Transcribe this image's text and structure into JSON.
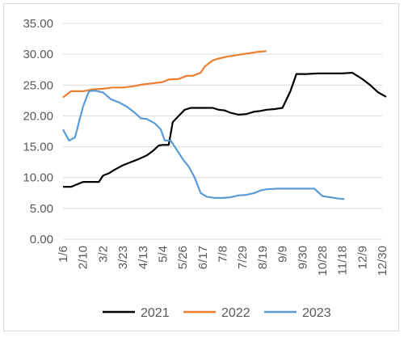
{
  "chart_data": {
    "type": "line",
    "title": "",
    "xlabel": "",
    "ylabel": "",
    "ylim": [
      0,
      35
    ],
    "y_ticks": [
      "0.00",
      "5.00",
      "10.00",
      "15.00",
      "20.00",
      "25.00",
      "30.00",
      "35.00"
    ],
    "x_tick_labels": [
      "1/6",
      "2/10",
      "3/2",
      "3/23",
      "4/13",
      "5/4",
      "5/26",
      "6/17",
      "7/8",
      "7/29",
      "8/19",
      "9/9",
      "9/30",
      "10/28",
      "11/18",
      "12/9",
      "12/30"
    ],
    "grid": "horizontal",
    "legend_position": "bottom",
    "series": [
      {
        "name": "2021",
        "color": "#000000",
        "points": [
          [
            0,
            8.5
          ],
          [
            0.4,
            8.5
          ],
          [
            1,
            9.3
          ],
          [
            1.5,
            9.3
          ],
          [
            1.8,
            9.3
          ],
          [
            2,
            10.3
          ],
          [
            2.3,
            10.7
          ],
          [
            2.6,
            11.3
          ],
          [
            3,
            12
          ],
          [
            3.4,
            12.5
          ],
          [
            3.8,
            13
          ],
          [
            4.2,
            13.6
          ],
          [
            4.5,
            14.3
          ],
          [
            4.8,
            15.2
          ],
          [
            5,
            15.3
          ],
          [
            5.3,
            15.3
          ],
          [
            5.5,
            19
          ],
          [
            5.8,
            20
          ],
          [
            6.1,
            21
          ],
          [
            6.4,
            21.3
          ],
          [
            6.8,
            21.3
          ],
          [
            7.2,
            21.3
          ],
          [
            7.5,
            21.3
          ],
          [
            7.8,
            21
          ],
          [
            8.1,
            20.9
          ],
          [
            8.4,
            20.5
          ],
          [
            8.8,
            20.2
          ],
          [
            9.2,
            20.3
          ],
          [
            9.6,
            20.7
          ],
          [
            9.9,
            20.8
          ],
          [
            10.2,
            21
          ],
          [
            10.6,
            21.1
          ],
          [
            11,
            21.3
          ],
          [
            11.4,
            24
          ],
          [
            11.7,
            26.8
          ],
          [
            12.2,
            26.8
          ],
          [
            12.8,
            26.9
          ],
          [
            13.4,
            26.9
          ],
          [
            14,
            26.9
          ],
          [
            14.5,
            27
          ],
          [
            15,
            26
          ],
          [
            15.4,
            25
          ],
          [
            15.8,
            23.8
          ],
          [
            16.2,
            23.1
          ]
        ]
      },
      {
        "name": "2022",
        "color": "#ed7d31",
        "points": [
          [
            0,
            23
          ],
          [
            0.4,
            24
          ],
          [
            1,
            24
          ],
          [
            1.5,
            24.3
          ],
          [
            2,
            24.4
          ],
          [
            2.5,
            24.6
          ],
          [
            3,
            24.6
          ],
          [
            3.5,
            24.8
          ],
          [
            4,
            25.1
          ],
          [
            4.5,
            25.3
          ],
          [
            5,
            25.5
          ],
          [
            5.3,
            25.9
          ],
          [
            5.8,
            26
          ],
          [
            6.2,
            26.5
          ],
          [
            6.5,
            26.5
          ],
          [
            6.9,
            27
          ],
          [
            7.1,
            28
          ],
          [
            7.5,
            29
          ],
          [
            7.8,
            29.3
          ],
          [
            8.2,
            29.6
          ],
          [
            8.6,
            29.8
          ],
          [
            9,
            30
          ],
          [
            9.4,
            30.2
          ],
          [
            9.8,
            30.4
          ],
          [
            10.2,
            30.5
          ]
        ]
      },
      {
        "name": "2023",
        "color": "#5b9bd5",
        "points": [
          [
            0,
            17.8
          ],
          [
            0.3,
            16
          ],
          [
            0.6,
            16.5
          ],
          [
            1,
            21.5
          ],
          [
            1.3,
            24
          ],
          [
            1.6,
            24.1
          ],
          [
            2,
            23.8
          ],
          [
            2.4,
            22.7
          ],
          [
            2.8,
            22.2
          ],
          [
            3.2,
            21.5
          ],
          [
            3.6,
            20.5
          ],
          [
            3.9,
            19.6
          ],
          [
            4.2,
            19.5
          ],
          [
            4.6,
            18.8
          ],
          [
            4.9,
            17.8
          ],
          [
            5.1,
            16
          ],
          [
            5.4,
            16
          ],
          [
            5.7,
            14.5
          ],
          [
            6,
            13
          ],
          [
            6.3,
            11.8
          ],
          [
            6.6,
            10
          ],
          [
            6.9,
            7.5
          ],
          [
            7.2,
            6.9
          ],
          [
            7.6,
            6.7
          ],
          [
            8,
            6.7
          ],
          [
            8.4,
            6.8
          ],
          [
            8.8,
            7.1
          ],
          [
            9.2,
            7.2
          ],
          [
            9.6,
            7.5
          ],
          [
            9.9,
            7.9
          ],
          [
            10.2,
            8.1
          ],
          [
            10.8,
            8.2
          ],
          [
            11.4,
            8.2
          ],
          [
            12,
            8.2
          ],
          [
            12.6,
            8.2
          ],
          [
            13,
            7
          ],
          [
            13.4,
            6.8
          ],
          [
            13.8,
            6.6
          ],
          [
            14.1,
            6.5
          ]
        ]
      }
    ]
  }
}
